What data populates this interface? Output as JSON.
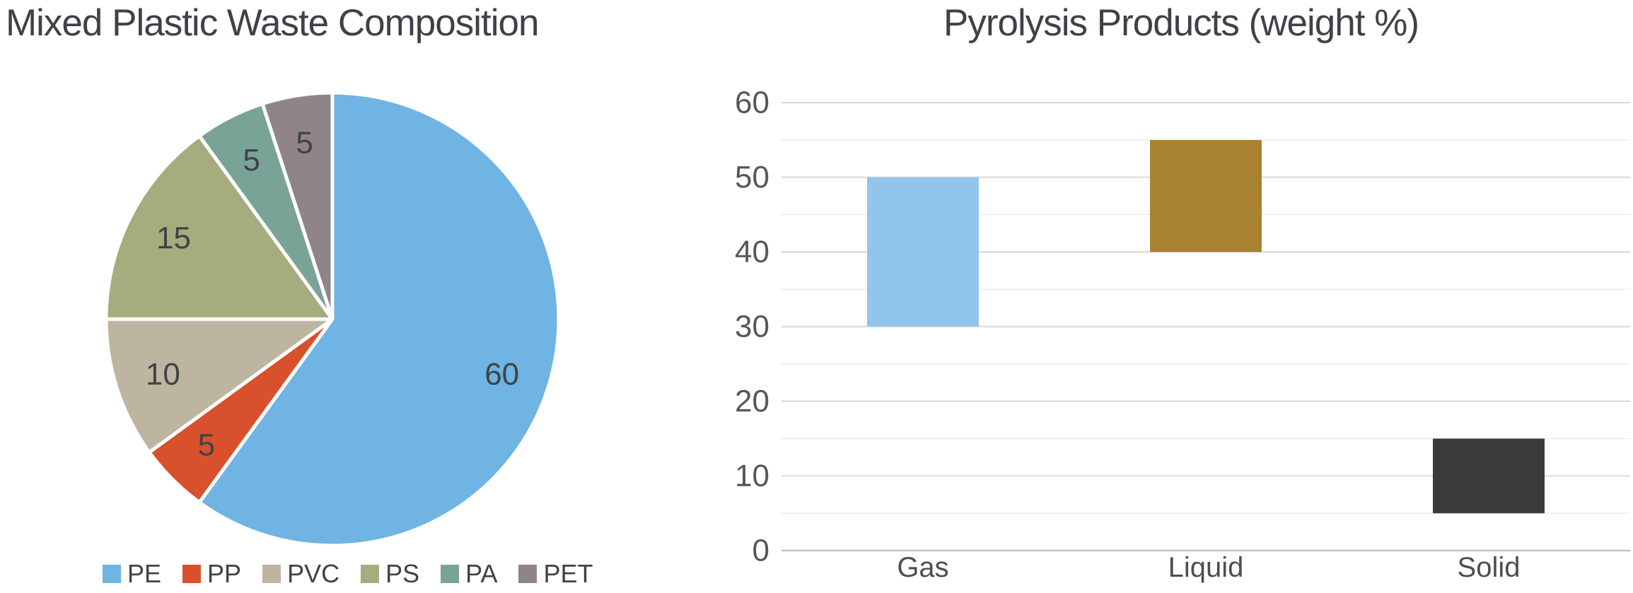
{
  "chart_data": [
    {
      "type": "pie",
      "title": "Mixed Plastic Waste Composition",
      "categories": [
        "PE",
        "PP",
        "PVC",
        "PS",
        "PA",
        "PET"
      ],
      "values": [
        60,
        5,
        10,
        15,
        5,
        5
      ],
      "colors": [
        "#6fb4e3",
        "#d8502c",
        "#bdb5a0",
        "#a5ad7e",
        "#7aa397",
        "#8f8588"
      ],
      "start": "top",
      "direction": "clockwise",
      "slice_gap_color": "#ffffff",
      "slice_label_color": "#3f4347",
      "legend_position": "bottom-left"
    },
    {
      "type": "bar",
      "subtype": "floating-column",
      "title": "Pyrolysis Products (weight %)",
      "categories": [
        "Gas",
        "Liquid",
        "Solid"
      ],
      "series": [
        {
          "name": "weight-range",
          "values": [
            [
              30,
              50
            ],
            [
              40,
              55
            ],
            [
              5,
              15
            ]
          ]
        }
      ],
      "bar_colors": [
        "#92c5ec",
        "#a9822f",
        "#3b3b3b"
      ],
      "ylim": [
        0,
        60
      ],
      "yticks": [
        0,
        10,
        20,
        30,
        40,
        50,
        60
      ],
      "minor_grid_step": 5,
      "grid": "horizontal",
      "major_grid_color": "#d9d9d9",
      "minor_grid_color": "#ededed",
      "zero_line_color": "#c3c3c3",
      "tick_label_color": "#54585b",
      "category_label_color": "#4b4f52",
      "legend_position": "none"
    }
  ]
}
